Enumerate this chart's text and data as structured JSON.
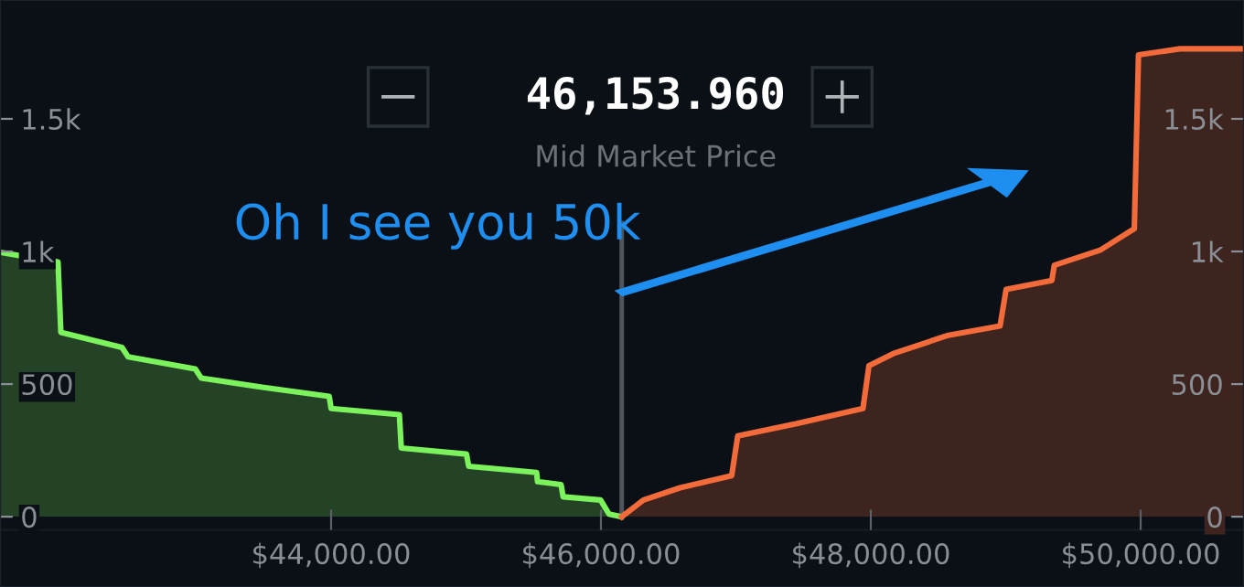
{
  "chart_data": {
    "type": "area",
    "title": "46,153.960",
    "subtitle": "Mid Market Price",
    "annotations": [
      "Oh I see you 50k"
    ],
    "series": [
      {
        "color": "#7cf25c",
        "x": [
          41546,
          41976,
          41997,
          42450,
          42495,
          42993,
          43037,
          43489,
          43986,
          44000,
          44506,
          44520,
          45003,
          45020,
          45523,
          45530,
          45704,
          45720,
          45997,
          46060,
          46150
        ],
        "values": [
          997,
          960,
          695,
          638,
          603,
          557,
          523,
          488,
          454,
          408,
          385,
          259,
          236,
          190,
          167,
          132,
          121,
          75,
          63,
          10,
          0
        ]
      },
      {
        "color": "#f36b3b",
        "x": [
          46154,
          46315,
          46586,
          46969,
          47014,
          47444,
          47942,
          47986,
          48167,
          48574,
          48958,
          49003,
          49342,
          49360,
          49704,
          49953,
          49984,
          50291,
          50766
        ],
        "values": [
          0,
          63,
          109,
          155,
          305,
          350,
          408,
          569,
          615,
          684,
          719,
          857,
          891,
          948,
          1006,
          1086,
          1741,
          1764,
          1764
        ]
      }
    ],
    "xlim": [
      41546,
      50766
    ],
    "xticks": [
      {
        "value": 44000,
        "label": "$44,000.00"
      },
      {
        "value": 46000,
        "label": "$46,000.00"
      },
      {
        "value": 48000,
        "label": "$48,000.00"
      },
      {
        "value": 50000,
        "label": "$50,000.00"
      }
    ],
    "ylim": [
      -265,
      1948
    ],
    "yticks": [
      0,
      500,
      {
        "value": 1000,
        "label": "1k"
      },
      {
        "value": 1500,
        "label": "1.5k"
      }
    ],
    "y2lim": [
      -265,
      1948
    ],
    "y2ticks": [
      0,
      500,
      {
        "value": 1000,
        "label": "1k"
      },
      {
        "value": 1500,
        "label": "1.5k"
      }
    ],
    "ref_lines": [
      {
        "axis": "x",
        "value": 46153.96,
        "color": "#50555c"
      }
    ],
    "grid": false,
    "legend": false
  }
}
